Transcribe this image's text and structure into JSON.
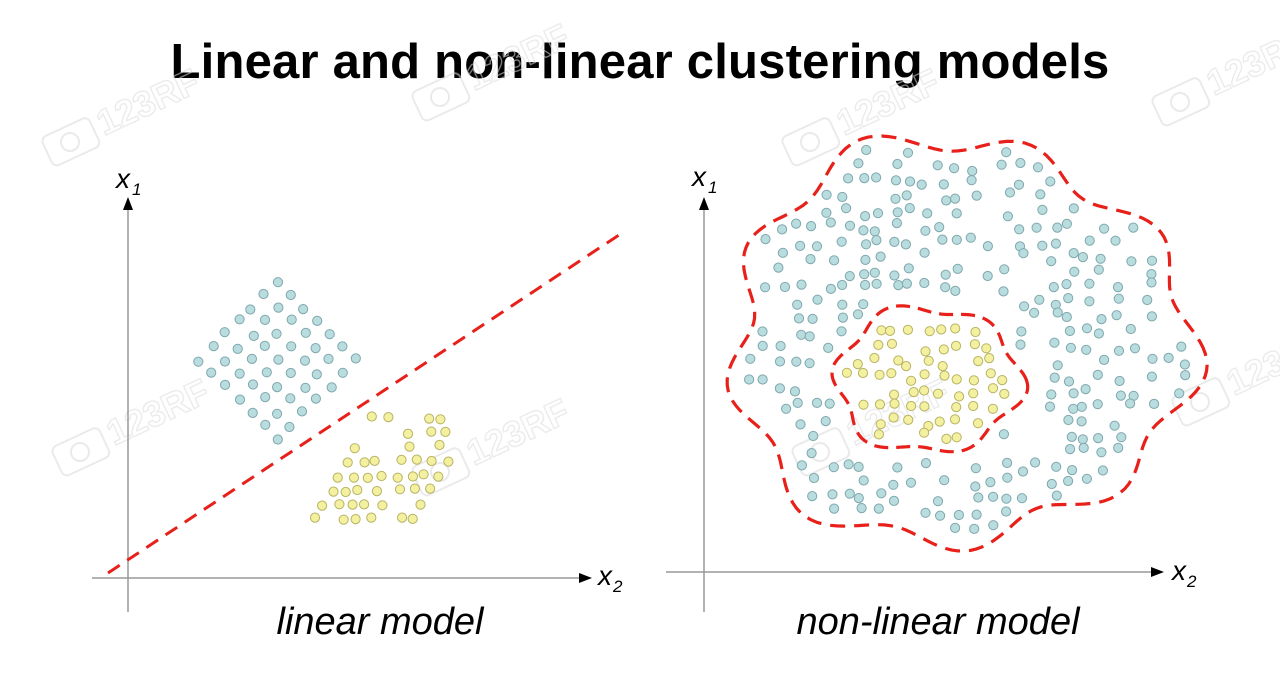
{
  "title": "Linear and non-linear clustering models",
  "colors": {
    "cluster_a": "#b9dcde",
    "cluster_a_stroke": "#7fa8ad",
    "cluster_b": "#f3f0a0",
    "cluster_b_stroke": "#b8b365",
    "boundary": "#e8201a",
    "axis": "#999999"
  },
  "panels": [
    {
      "id": "linear",
      "caption": "linear model",
      "y_axis": {
        "label": "x",
        "subscript": "1"
      },
      "x_axis": {
        "label": "x",
        "subscript": "2"
      }
    },
    {
      "id": "nonlinear",
      "caption": "non-linear model",
      "y_axis": {
        "label": "x",
        "subscript": "1"
      },
      "x_axis": {
        "label": "x",
        "subscript": "2"
      }
    }
  ],
  "watermark": {
    "text": "123RF"
  },
  "icons": [
    "arrow-up-icon",
    "arrow-right-icon",
    "camera-watermark-icon"
  ]
}
